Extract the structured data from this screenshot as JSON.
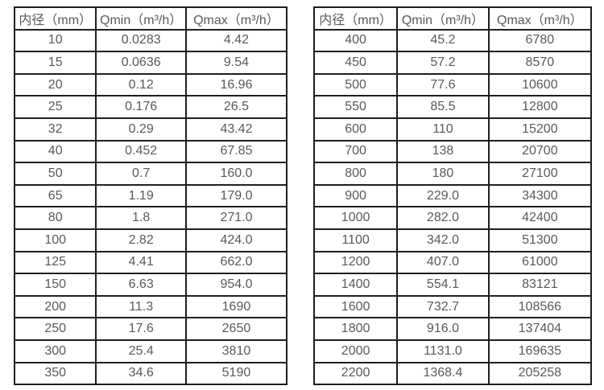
{
  "colors": {
    "background": "#ffffff",
    "table_border": "#1f1f1f",
    "text": "#595959"
  },
  "chart_data": [
    {
      "type": "table",
      "title": "",
      "columns": [
        "内径（mm）",
        "Qmin（m³/h）",
        "Qmax（m³/h）"
      ],
      "rows": [
        [
          "10",
          "0.0283",
          "4.42"
        ],
        [
          "15",
          "0.0636",
          "9.54"
        ],
        [
          "20",
          "0.12",
          "16.96"
        ],
        [
          "25",
          "0.176",
          "26.5"
        ],
        [
          "32",
          "0.29",
          "43.42"
        ],
        [
          "40",
          "0.452",
          "67.85"
        ],
        [
          "50",
          "0.7",
          "160.0"
        ],
        [
          "65",
          "1.19",
          "179.0"
        ],
        [
          "80",
          "1.8",
          "271.0"
        ],
        [
          "100",
          "2.82",
          "424.0"
        ],
        [
          "125",
          "4.41",
          "662.0"
        ],
        [
          "150",
          "6.63",
          "954.0"
        ],
        [
          "200",
          "11.3",
          "1690"
        ],
        [
          "250",
          "17.6",
          "2650"
        ],
        [
          "300",
          "25.4",
          "3810"
        ],
        [
          "350",
          "34.6",
          "5190"
        ]
      ]
    },
    {
      "type": "table",
      "title": "",
      "columns": [
        "内径（mm）",
        "Qmin（m³/h）",
        "Qmax（m³/h）"
      ],
      "rows": [
        [
          "400",
          "45.2",
          "6780"
        ],
        [
          "450",
          "57.2",
          "8570"
        ],
        [
          "500",
          "77.6",
          "10600"
        ],
        [
          "550",
          "85.5",
          "12800"
        ],
        [
          "600",
          "110",
          "15200"
        ],
        [
          "700",
          "138",
          "20700"
        ],
        [
          "800",
          "180",
          "27100"
        ],
        [
          "900",
          "229.0",
          "34300"
        ],
        [
          "1000",
          "282.0",
          "42400"
        ],
        [
          "1100",
          "342.0",
          "51300"
        ],
        [
          "1200",
          "407.0",
          "61000"
        ],
        [
          "1400",
          "554.1",
          "83121"
        ],
        [
          "1600",
          "732.7",
          "108566"
        ],
        [
          "1800",
          "916.0",
          "137404"
        ],
        [
          "2000",
          "1131.0",
          "169635"
        ],
        [
          "2200",
          "1368.4",
          "205258"
        ]
      ]
    }
  ]
}
